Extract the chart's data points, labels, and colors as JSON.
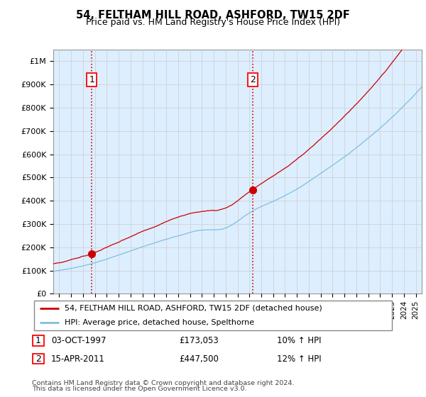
{
  "title": "54, FELTHAM HILL ROAD, ASHFORD, TW15 2DF",
  "subtitle": "Price paid vs. HM Land Registry's House Price Index (HPI)",
  "ylim": [
    0,
    1050000
  ],
  "yticks": [
    0,
    100000,
    200000,
    300000,
    400000,
    500000,
    600000,
    700000,
    800000,
    900000,
    1000000
  ],
  "ytick_labels": [
    "£0",
    "£100K",
    "£200K",
    "£300K",
    "£400K",
    "£500K",
    "£600K",
    "£700K",
    "£800K",
    "£900K",
    "£1M"
  ],
  "sale1_date": 1997.75,
  "sale1_price": 173053,
  "sale2_date": 2011.29,
  "sale2_price": 447500,
  "hpi_color": "#7fbfdf",
  "price_color": "#cc0000",
  "marker_color": "#cc0000",
  "vline_color": "#cc0000",
  "grid_color": "#cccccc",
  "plot_bg_color": "#ddeeff",
  "legend_label_price": "54, FELTHAM HILL ROAD, ASHFORD, TW15 2DF (detached house)",
  "legend_label_hpi": "HPI: Average price, detached house, Spelthorne",
  "footer_text": "Contains HM Land Registry data © Crown copyright and database right 2024.\nThis data is licensed under the Open Government Licence v3.0.",
  "xstart": 1994.5,
  "xend": 2025.5
}
